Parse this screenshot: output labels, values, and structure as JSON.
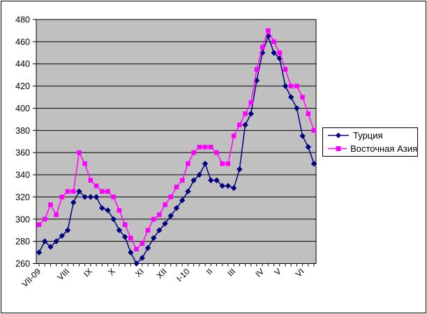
{
  "chart_data": {
    "type": "line",
    "title": "",
    "plot_bg": "#C0C0C0",
    "grid": "on",
    "legend_position": "right",
    "y_axis": {
      "min": 260,
      "max": 480,
      "step": 20
    },
    "x_axis": {
      "month_labels": [
        "VII-09",
        "VIII",
        "IX",
        "X",
        "XI",
        "XII",
        "I-10",
        "II",
        "III",
        "IV",
        "V",
        "VI"
      ],
      "month_start_indices": [
        0,
        5,
        9,
        13,
        18,
        22,
        26,
        30,
        34,
        39,
        42,
        46
      ],
      "n_points": 49
    },
    "series": [
      {
        "name": "Турция",
        "color": "#000080",
        "marker": "diamond",
        "values": [
          270,
          280,
          275,
          280,
          285,
          290,
          315,
          325,
          320,
          320,
          320,
          310,
          308,
          300,
          290,
          284,
          270,
          260,
          265,
          274,
          283,
          290,
          296,
          303,
          310,
          317,
          325,
          335,
          340,
          350,
          335,
          335,
          330,
          330,
          328,
          345,
          385,
          395,
          425,
          450,
          465,
          450,
          445,
          420,
          410,
          400,
          375,
          365,
          350
        ]
      },
      {
        "name": "Восточная Азия",
        "color": "#FF00FF",
        "marker": "square",
        "values": [
          295,
          300,
          313,
          304,
          320,
          325,
          325,
          360,
          350,
          335,
          330,
          325,
          325,
          320,
          308,
          295,
          283,
          273,
          278,
          290,
          300,
          304,
          313,
          320,
          329,
          335,
          350,
          360,
          365,
          365,
          365,
          360,
          350,
          350,
          375,
          385,
          395,
          405,
          435,
          455,
          470,
          460,
          450,
          435,
          420,
          420,
          410,
          395,
          380
        ]
      }
    ]
  }
}
